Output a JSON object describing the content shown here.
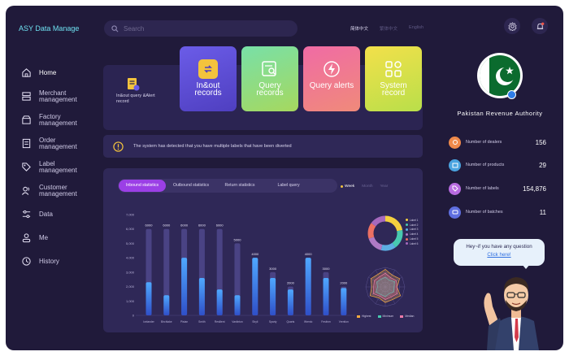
{
  "brand": "ASY Data Manage",
  "search": {
    "placeholder": "Search"
  },
  "languages": [
    "简体中文",
    "繁体中文",
    "English"
  ],
  "nav": [
    {
      "label": "Home",
      "icon": "home-icon"
    },
    {
      "label": "Merchant management",
      "icon": "merchant-icon"
    },
    {
      "label": "Factory management",
      "icon": "factory-icon"
    },
    {
      "label": "Order management",
      "icon": "order-icon"
    },
    {
      "label": "Label management",
      "icon": "tag-icon"
    },
    {
      "label": "Customer management",
      "icon": "customer-icon"
    },
    {
      "label": "Data",
      "icon": "sliders-icon"
    },
    {
      "label": "Me",
      "icon": "user-icon"
    },
    {
      "label": "History",
      "icon": "clock-icon"
    }
  ],
  "action_panel": {
    "query_label": "In&out query &Alert record",
    "tiles": [
      {
        "label": "In&out records",
        "icon": "swap-arrows-icon"
      },
      {
        "label": "Query records",
        "icon": "search-doc-icon"
      },
      {
        "label": "Query alerts",
        "icon": "lightning-icon"
      },
      {
        "label": "System record",
        "icon": "grid-icon"
      }
    ]
  },
  "alert": {
    "message": "The system has detected that you have multiple labels that have been diverted"
  },
  "stat_tabs": [
    {
      "label": "Inbound statistics",
      "active": true
    },
    {
      "label": "Outbound statistics",
      "active": false
    },
    {
      "label": "Return statistics",
      "active": false
    },
    {
      "label": "Label query",
      "active": false
    }
  ],
  "periods": [
    {
      "label": "Week",
      "active": true
    },
    {
      "label": "Month",
      "active": false
    },
    {
      "label": "Year",
      "active": false
    }
  ],
  "chart_data": [
    {
      "type": "bar",
      "title": "",
      "categories": [
        "Icelander",
        "Birchlake",
        "Pistan",
        "Smith",
        "Resilient",
        "Vanlinton",
        "Shyli",
        "Sparty",
        "Quarts",
        "Wrenlo",
        "Festivm",
        "Vrentlon"
      ],
      "series": [
        {
          "name": "",
          "values": [
            6000,
            6000,
            6000,
            6000,
            6000,
            5000,
            4000,
            3000,
            2000,
            4000,
            3000,
            2000
          ]
        }
      ],
      "fill_values": [
        2300,
        1400,
        4000,
        2600,
        1800,
        1400,
        4000,
        2600,
        1800,
        4000,
        2600,
        1900
      ],
      "data_labels": [
        "6000",
        "6000",
        "6000",
        "6000",
        "6000",
        "5000",
        "4000",
        "3000",
        "2000",
        "4000",
        "3000",
        "2000"
      ],
      "yticks": [
        "7,000",
        "6,000",
        "5,000",
        "4,000",
        "3,000",
        "2,000",
        "1,000",
        "0"
      ],
      "ylim": [
        0,
        7000
      ],
      "grid": false
    },
    {
      "type": "pie",
      "legend": [
        "Label 1",
        "Label 2",
        "Label 3",
        "Label 4",
        "Label 5",
        "Label 6"
      ],
      "values": [
        22,
        18,
        14,
        16,
        15,
        15
      ],
      "colors": [
        "#f4d03f",
        "#48c9b0",
        "#5dade2",
        "#af7ac5",
        "#ec7063",
        "#a569bd"
      ]
    },
    {
      "type": "radar",
      "legend": [
        "Highest",
        "Minimum",
        "Median"
      ],
      "colors": [
        "#f4a940",
        "#48c9b0",
        "#ec7aa8"
      ]
    }
  ],
  "org": {
    "name": "Pakistan Revenue Authority"
  },
  "stats": [
    {
      "label": "Number of dealers",
      "value": "156",
      "color": "#f08a4b"
    },
    {
      "label": "Number of products",
      "value": "29",
      "color": "#4aa3df"
    },
    {
      "label": "Number of labels",
      "value": "154,876",
      "color": "#b86be0"
    },
    {
      "label": "Number of batches",
      "value": "11",
      "color": "#5f6fe0"
    }
  ],
  "help": {
    "line1": "Hey~if you have any question",
    "link": "Click here!"
  }
}
